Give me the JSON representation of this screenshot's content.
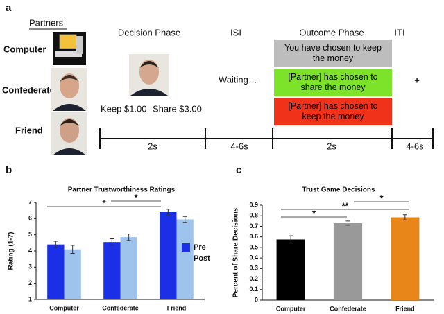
{
  "diagram": {
    "panel_label": "a",
    "partners_heading": "Partners",
    "partners": [
      "Computer",
      "Confederate",
      "Friend"
    ],
    "phases": [
      {
        "title": "Decision Phase",
        "duration": "2s"
      },
      {
        "title": "ISI",
        "duration": "4-6s"
      },
      {
        "title": "Outcome Phase",
        "duration": "2s"
      },
      {
        "title": "ITI",
        "duration": "4-6s"
      }
    ],
    "decision_options": [
      "Keep $1.00",
      "Share $3.00"
    ],
    "isi_text": "Waiting…",
    "outcomes": [
      "You have chosen to keep the money",
      "[Partner] has chosen to share the money",
      "[Partner] has chosen to keep the money"
    ],
    "iti_symbol": "+"
  },
  "chart_data": [
    {
      "panel_label": "b",
      "type": "bar",
      "title": "Partner Trustworthiness Ratings",
      "ylabel": "Rating (1-7)",
      "categories": [
        "Computer",
        "Confederate",
        "Friend"
      ],
      "series": [
        {
          "name": "Pre",
          "color": "#1a2fe6",
          "values": [
            4.4,
            4.55,
            6.4
          ],
          "errors": [
            0.2,
            0.2,
            0.18
          ]
        },
        {
          "name": "Post",
          "color": "#9ec4ee",
          "values": [
            4.1,
            4.85,
            5.95
          ],
          "errors": [
            0.25,
            0.2,
            0.18
          ]
        }
      ],
      "ylim": [
        1,
        7
      ],
      "yticks": [
        1,
        2,
        3,
        4,
        5,
        6,
        7
      ],
      "grid": false,
      "legend": "right",
      "annotations": [
        "*",
        "*"
      ]
    },
    {
      "panel_label": "c",
      "type": "bar",
      "title": "Trust Game Decisions",
      "ylabel": "Percent of Share Decisions",
      "categories": [
        "Computer",
        "Confederate",
        "Friend"
      ],
      "values": [
        0.575,
        0.73,
        0.785
      ],
      "errors": [
        0.035,
        0.02,
        0.025
      ],
      "colors": [
        "#000000",
        "#999999",
        "#e8861a"
      ],
      "ylim": [
        0,
        0.9
      ],
      "yticks": [
        0,
        0.1,
        0.2,
        0.3,
        0.4,
        0.5,
        0.6,
        0.7,
        0.8,
        0.9
      ],
      "grid": false,
      "annotations": [
        "*",
        "**",
        "*"
      ]
    }
  ]
}
